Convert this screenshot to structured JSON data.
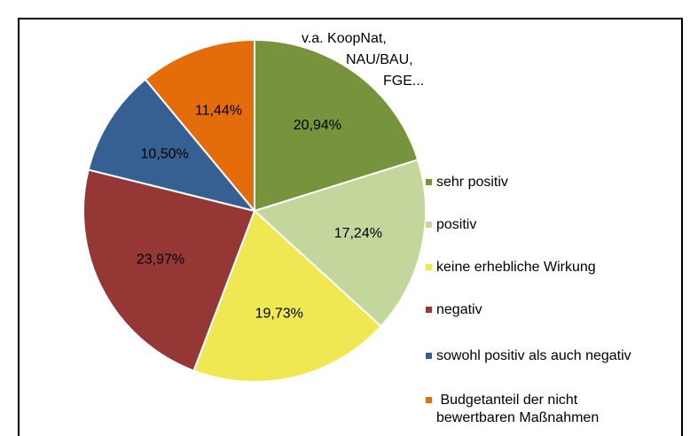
{
  "chart_data": {
    "type": "pie",
    "categories": [
      "sehr positiv",
      "positiv",
      "keine erhebliche Wirkung",
      "negativ",
      "sowohl positiv als auch negativ",
      " Budgetanteil der nicht bewertbaren Maßnahmen"
    ],
    "values": [
      20.94,
      17.24,
      19.73,
      23.97,
      10.5,
      11.44
    ],
    "value_labels": [
      "20,94%",
      "17,24%",
      "19,73%",
      "23,97%",
      "10,50%",
      "11,44%"
    ],
    "colors": [
      "#77933c",
      "#c3d69b",
      "#efe853",
      "#953735",
      "#376092",
      "#e46c0a"
    ],
    "annotation": [
      "v.a. KoopNat,",
      "NAU/BAU,",
      "FGE..."
    ],
    "legend": "right"
  }
}
